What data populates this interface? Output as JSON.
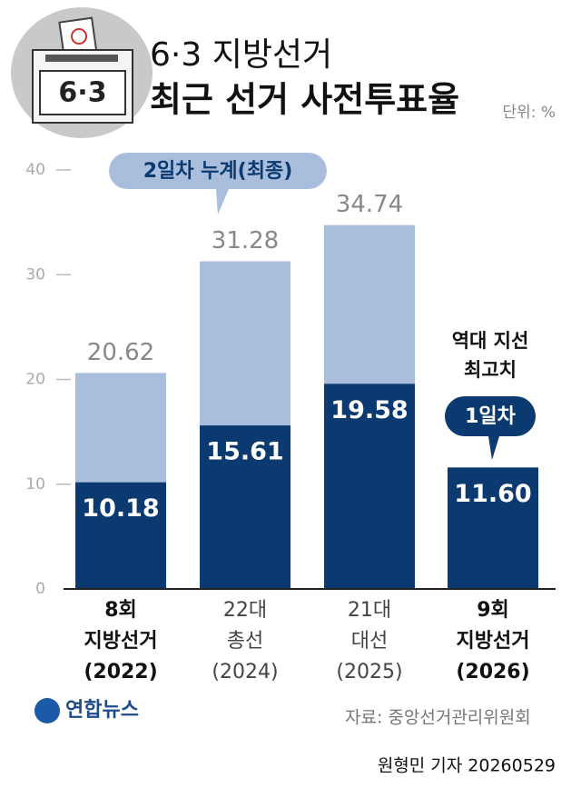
{
  "chart_data": {
    "type": "bar",
    "title": "6·3 지방선거",
    "subtitle": "최근 선거 사전투표율",
    "ballot_label": "6·3",
    "unit": "단위: %",
    "categories": [
      [
        "8회",
        "지방선거",
        "(2022)"
      ],
      [
        "22대",
        "총선",
        "(2024)"
      ],
      [
        "21대",
        "대선",
        "(2025)"
      ],
      [
        "9회",
        "지방선거",
        "(2026)"
      ]
    ],
    "highlight": [
      true,
      false,
      false,
      true
    ],
    "series": [
      {
        "name": "1일차",
        "color": "#0b3a70",
        "values": [
          10.18,
          15.61,
          19.58,
          11.6
        ],
        "value_labels": [
          "10.18",
          "15.61",
          "19.58",
          "11.60"
        ]
      },
      {
        "name": "2일차 누계(최종)",
        "color": "#a9bddc",
        "values": [
          20.62,
          31.28,
          34.74,
          null
        ]
      }
    ],
    "annotation": [
      "역대 지선",
      "최고치"
    ],
    "ylim": [
      0,
      40
    ],
    "yticks": [
      0,
      10,
      20,
      30,
      40
    ],
    "source": "자료: 중앙선거관리위원회",
    "logo": "연합뉴스",
    "byline": "원형민 기자 20260529"
  }
}
